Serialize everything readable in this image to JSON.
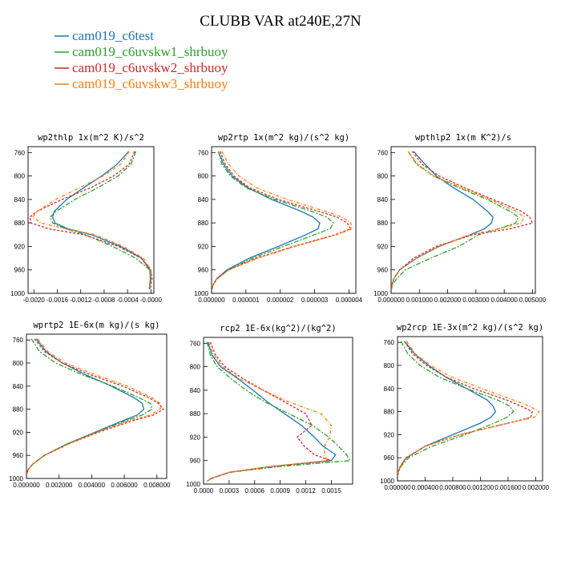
{
  "title": "CLUBB VAR at240E,27N",
  "legend": [
    {
      "name": "cam019_c6test",
      "color": "#1f77b4"
    },
    {
      "name": "cam019_c6uvskw1_shrbuoy",
      "color": "#2ca02c"
    },
    {
      "name": "cam019_c6uvskw2_shrbuoy",
      "color": "#d62728"
    },
    {
      "name": "cam019_c6uvskw3_shrbuoy",
      "color": "#ff7f0e"
    }
  ],
  "chart_data": [
    {
      "type": "line",
      "title": "wp2thlp   1x(m^2 K)/s^2",
      "xlim": [
        -0.0021,
        5e-05
      ],
      "ylim": [
        1000,
        750
      ],
      "xticks": [
        -0.002,
        -0.0016,
        -0.0012,
        -0.0008,
        -0.0004,
        -0.0
      ],
      "xtick_labels": [
        "-0.0020",
        "-0.0016",
        "-0.0012",
        "-0.0008",
        "-0.0004",
        "-0.0000"
      ],
      "yticks": [
        760,
        800,
        840,
        880,
        920,
        960,
        1000
      ],
      "y": [
        758,
        780,
        800,
        820,
        840,
        860,
        870,
        880,
        890,
        900,
        920,
        940,
        960,
        975,
        985,
        993
      ],
      "series": [
        {
          "name": "cam019_c6test",
          "values": [
            -0.00038,
            -0.00058,
            -0.00084,
            -0.00115,
            -0.00144,
            -0.00165,
            -0.00168,
            -0.00164,
            -0.00142,
            -0.00102,
            -0.00052,
            -0.00016,
            -2e-05,
            -1e-05,
            -2e-05,
            -3e-05
          ]
        },
        {
          "name": "cam019_c6uvskw1_shrbuoy",
          "values": [
            -0.00026,
            -0.00034,
            -0.00056,
            -0.00091,
            -0.0013,
            -0.00162,
            -0.00172,
            -0.00168,
            -0.00146,
            -0.00112,
            -0.00066,
            -0.00026,
            -2e-05,
            0.0,
            -1e-05,
            -2e-05
          ]
        },
        {
          "name": "cam019_c6uvskw2_shrbuoy",
          "values": [
            -0.00028,
            -0.00037,
            -0.00064,
            -0.00103,
            -0.00152,
            -0.00194,
            -0.00207,
            -0.00205,
            -0.00175,
            -0.00115,
            -0.00056,
            -0.00017,
            0.0,
            2e-05,
            0.0,
            -1e-05
          ]
        },
        {
          "name": "cam019_c6uvskw3_shrbuoy",
          "values": [
            -0.00037,
            -0.00052,
            -0.00082,
            -0.00122,
            -0.00163,
            -0.00194,
            -0.00202,
            -0.00188,
            -0.00146,
            -0.00096,
            -0.00047,
            -0.00013,
            0.0,
            1e-05,
            -1e-05,
            -2e-05
          ]
        }
      ]
    },
    {
      "type": "line",
      "title": "wp2rtp   1x(m^2 kg)/(s^2 kg)",
      "xlim": [
        0,
        4.2e-06
      ],
      "ylim": [
        1000,
        750
      ],
      "xticks": [
        0,
        1e-06,
        2e-06,
        3e-06,
        4e-06
      ],
      "xtick_labels": [
        "0.000000",
        "0.000001",
        "0.000002",
        "0.000003",
        "0.000004"
      ],
      "yticks": [
        760,
        800,
        840,
        880,
        920,
        960,
        1000
      ],
      "y": [
        758,
        780,
        800,
        820,
        840,
        860,
        870,
        880,
        890,
        900,
        920,
        940,
        960,
        975,
        985,
        993
      ],
      "series": [
        {
          "name": "cam019_c6test",
          "values": [
            2e-07,
            3.5e-07,
            6e-07,
            1.05e-06,
            1.75e-06,
            2.6e-06,
            2.95e-06,
            3.15e-06,
            3.1e-06,
            2.75e-06,
            1.95e-06,
            1.1e-06,
            4.5e-07,
            1.5e-07,
            5e-08,
            1e-08
          ]
        },
        {
          "name": "cam019_c6uvskw1_shrbuoy",
          "values": [
            2e-07,
            3e-07,
            5.5e-07,
            1e-06,
            1.85e-06,
            2.9e-06,
            3.35e-06,
            3.55e-06,
            3.45e-06,
            3e-06,
            2.1e-06,
            1.2e-06,
            5e-07,
            1.6e-07,
            5e-08,
            1e-08
          ]
        },
        {
          "name": "cam019_c6uvskw2_shrbuoy",
          "values": [
            2.5e-07,
            4e-07,
            6.5e-07,
            1.1e-06,
            1.95e-06,
            3.1e-06,
            3.65e-06,
            3.95e-06,
            4.05e-06,
            3.6e-06,
            2.4e-06,
            1.3e-06,
            5e-07,
            1.6e-07,
            5e-08,
            1e-08
          ]
        },
        {
          "name": "cam019_c6uvskw3_shrbuoy",
          "values": [
            3e-07,
            5e-07,
            8e-07,
            1.3e-06,
            2.2e-06,
            3.3e-06,
            3.8e-06,
            4.05e-06,
            4.1e-06,
            3.65e-06,
            2.45e-06,
            1.35e-06,
            5e-07,
            1.6e-07,
            5e-08,
            1e-08
          ]
        }
      ]
    },
    {
      "type": "line",
      "title": "wpthlp2   1x(m K^2)/s",
      "xlim": [
        0,
        0.0051
      ],
      "ylim": [
        1000,
        750
      ],
      "xticks": [
        0,
        0.001,
        0.002,
        0.003,
        0.004,
        0.005
      ],
      "xtick_labels": [
        "0.000000",
        "0.001000",
        "0.002000",
        "0.003000",
        "0.004000",
        "0.005000"
      ],
      "yticks": [
        760,
        800,
        840,
        880,
        920,
        960,
        1000
      ],
      "y": [
        758,
        780,
        800,
        820,
        840,
        860,
        870,
        880,
        890,
        900,
        920,
        940,
        960,
        975,
        985,
        993
      ],
      "series": [
        {
          "name": "cam019_c6test",
          "values": [
            0.0008,
            0.0012,
            0.0016,
            0.0022,
            0.0029,
            0.0034,
            0.0036,
            0.00355,
            0.0033,
            0.0028,
            0.0017,
            0.0009,
            0.0003,
            0.0001,
            3e-05,
            1e-05
          ]
        },
        {
          "name": "cam019_c6uvskw1_shrbuoy",
          "values": [
            0.0006,
            0.0009,
            0.0015,
            0.0024,
            0.0034,
            0.0042,
            0.0045,
            0.0044,
            0.0038,
            0.0031,
            0.0024,
            0.0014,
            0.0005,
            0.0002,
            5e-05,
            1e-05
          ]
        },
        {
          "name": "cam019_c6uvskw2_shrbuoy",
          "values": [
            0.00075,
            0.0011,
            0.0017,
            0.0026,
            0.0036,
            0.0046,
            0.0049,
            0.005,
            0.0042,
            0.0029,
            0.0016,
            0.0008,
            0.0003,
            0.0001,
            3e-05,
            1e-05
          ]
        },
        {
          "name": "cam019_c6uvskw3_shrbuoy",
          "values": [
            0.0006,
            0.00095,
            0.0015,
            0.0025,
            0.0035,
            0.0044,
            0.0047,
            0.0046,
            0.0038,
            0.0028,
            0.0017,
            0.0009,
            0.0003,
            0.0001,
            3e-05,
            1e-05
          ]
        }
      ]
    },
    {
      "type": "line",
      "title": "wprtp2   1E-6x(m kg)/(s kg)",
      "xlim": [
        0,
        0.0086
      ],
      "ylim": [
        1000,
        750
      ],
      "xticks": [
        0,
        0.002,
        0.004,
        0.006,
        0.008
      ],
      "xtick_labels": [
        "0.000000",
        "0.002000",
        "0.004000",
        "0.006000",
        "0.008000"
      ],
      "yticks": [
        760,
        800,
        840,
        880,
        920,
        960,
        1000
      ],
      "y": [
        758,
        780,
        800,
        820,
        840,
        860,
        870,
        880,
        890,
        900,
        920,
        940,
        960,
        975,
        985,
        993
      ],
      "series": [
        {
          "name": "cam019_c6test",
          "values": [
            0.0006,
            0.0012,
            0.0022,
            0.0036,
            0.0052,
            0.0066,
            0.0071,
            0.0072,
            0.0068,
            0.0059,
            0.0042,
            0.0025,
            0.0011,
            0.0004,
            0.0001,
            2e-05
          ]
        },
        {
          "name": "cam019_c6uvskw1_shrbuoy",
          "values": [
            0.0003,
            0.0008,
            0.0018,
            0.0034,
            0.0053,
            0.0069,
            0.0076,
            0.0077,
            0.0071,
            0.0061,
            0.0043,
            0.0025,
            0.0011,
            0.0004,
            0.0001,
            2e-05
          ]
        },
        {
          "name": "cam019_c6uvskw2_shrbuoy",
          "values": [
            0.0005,
            0.0011,
            0.0022,
            0.0039,
            0.0059,
            0.0075,
            0.0081,
            0.0084,
            0.0078,
            0.0065,
            0.0044,
            0.0026,
            0.0011,
            0.0004,
            0.0001,
            2e-05
          ]
        },
        {
          "name": "cam019_c6uvskw3_shrbuoy",
          "values": [
            0.0007,
            0.0013,
            0.0024,
            0.0042,
            0.0062,
            0.0077,
            0.0082,
            0.0082,
            0.0076,
            0.0063,
            0.0043,
            0.0026,
            0.0011,
            0.0004,
            0.0001,
            2e-05
          ]
        }
      ]
    },
    {
      "type": "line",
      "title": "rcp2   1E-6x(kg^2)/(kg^2)",
      "xlim": [
        0,
        0.00175
      ],
      "ylim": [
        1000,
        750
      ],
      "xticks": [
        0,
        0.0003,
        0.0006,
        0.0009,
        0.0012,
        0.0015
      ],
      "xtick_labels": [
        "0.0000",
        "0.0003",
        "0.0006",
        "0.0009",
        "0.0012",
        "0.0015"
      ],
      "yticks": [
        760,
        800,
        840,
        880,
        920,
        960,
        1000
      ],
      "y": [
        758,
        780,
        800,
        820,
        840,
        860,
        880,
        900,
        920,
        935,
        950,
        960,
        970,
        980,
        990,
        995
      ],
      "series": [
        {
          "name": "cam019_c6test",
          "values": [
            5e-05,
            0.0001,
            0.0002,
            0.0004,
            0.00058,
            0.00075,
            0.00095,
            0.00115,
            0.0013,
            0.0014,
            0.00155,
            0.0015,
            0.0008,
            0.0003,
            0.0001,
            4e-05
          ]
        },
        {
          "name": "cam019_c6uvskw1_shrbuoy",
          "values": [
            4e-05,
            8e-05,
            0.00016,
            0.00032,
            0.0005,
            0.00072,
            0.001,
            0.00128,
            0.00147,
            0.00158,
            0.00168,
            0.00172,
            0.0009,
            0.0003,
            0.0001,
            4e-05
          ]
        },
        {
          "name": "cam019_c6uvskw2_shrbuoy",
          "values": [
            8e-05,
            0.00014,
            0.00025,
            0.00046,
            0.0007,
            0.00095,
            0.0012,
            0.00127,
            0.0011,
            0.00118,
            0.0013,
            0.0015,
            0.0008,
            0.0003,
            0.0001,
            4e-05
          ]
        },
        {
          "name": "cam019_c6uvskw3_shrbuoy",
          "values": [
            6e-05,
            0.00012,
            0.00022,
            0.00042,
            0.0007,
            0.001,
            0.00138,
            0.0015,
            0.00148,
            0.00142,
            0.00142,
            0.00145,
            0.0008,
            0.0003,
            0.0001,
            4e-05
          ]
        }
      ]
    },
    {
      "type": "line",
      "title": "wp2rcp   1E-3x(m^2 kg)/(s^2 kg)",
      "xlim": [
        0,
        0.0021
      ],
      "ylim": [
        1000,
        750
      ],
      "xticks": [
        0,
        0.0004,
        0.0008,
        0.0012,
        0.0016,
        0.002
      ],
      "xtick_labels": [
        "0.000000",
        "0.000400",
        "0.000800",
        "0.001200",
        "0.001600",
        "0.002000"
      ],
      "yticks": [
        760,
        800,
        840,
        880,
        920,
        960,
        1000
      ],
      "y": [
        758,
        780,
        800,
        820,
        840,
        860,
        870,
        880,
        890,
        900,
        920,
        940,
        960,
        975,
        985,
        993
      ],
      "series": [
        {
          "name": "cam019_c6test",
          "values": [
            0.0001,
            0.00025,
            0.00045,
            0.0007,
            0.001,
            0.0013,
            0.00138,
            0.00142,
            0.00135,
            0.0012,
            0.0008,
            0.0004,
            0.00013,
            4e-05,
            1e-05,
            0.0
          ]
        },
        {
          "name": "cam019_c6uvskw1_shrbuoy",
          "values": [
            5e-05,
            0.00015,
            0.00033,
            0.0006,
            0.001,
            0.00145,
            0.00162,
            0.00168,
            0.00158,
            0.0014,
            0.00098,
            0.0005,
            0.00016,
            5e-05,
            1e-05,
            0.0
          ]
        },
        {
          "name": "cam019_c6uvskw2_shrbuoy",
          "values": [
            0.0001,
            0.00022,
            0.00042,
            0.0007,
            0.0011,
            0.00158,
            0.00178,
            0.00195,
            0.00193,
            0.0016,
            0.0009,
            0.0004,
            0.00012,
            4e-05,
            1e-05,
            0.0
          ]
        },
        {
          "name": "cam019_c6uvskw3_shrbuoy",
          "values": [
            0.00013,
            0.00026,
            0.00048,
            0.00078,
            0.00122,
            0.00168,
            0.0019,
            0.00205,
            0.00198,
            0.0016,
            0.0009,
            0.0004,
            0.00012,
            4e-05,
            1e-05,
            0.0
          ]
        }
      ]
    }
  ]
}
